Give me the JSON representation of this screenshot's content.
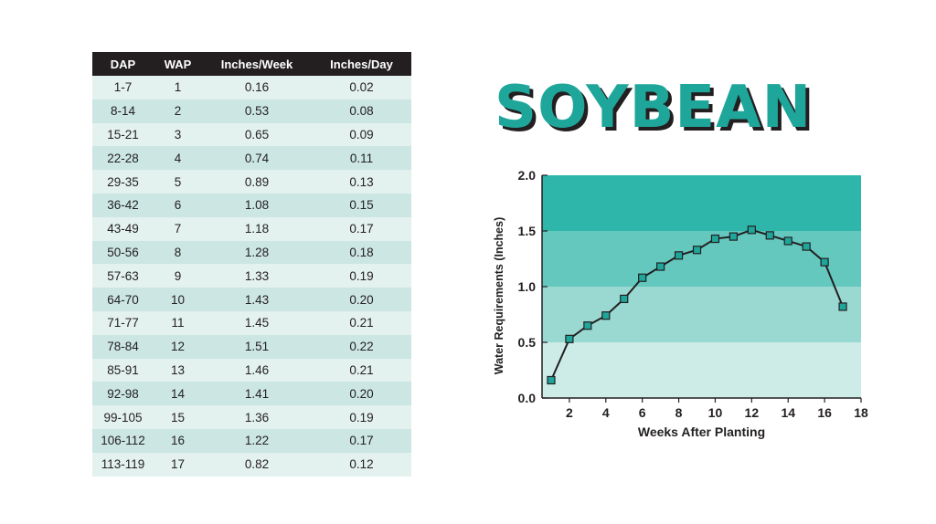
{
  "table": {
    "headers": [
      "DAP",
      "WAP",
      "Inches/Week",
      "Inches/Day"
    ],
    "rows": [
      [
        "1-7",
        "1",
        "0.16",
        "0.02"
      ],
      [
        "8-14",
        "2",
        "0.53",
        "0.08"
      ],
      [
        "15-21",
        "3",
        "0.65",
        "0.09"
      ],
      [
        "22-28",
        "4",
        "0.74",
        "0.11"
      ],
      [
        "29-35",
        "5",
        "0.89",
        "0.13"
      ],
      [
        "36-42",
        "6",
        "1.08",
        "0.15"
      ],
      [
        "43-49",
        "7",
        "1.18",
        "0.17"
      ],
      [
        "50-56",
        "8",
        "1.28",
        "0.18"
      ],
      [
        "57-63",
        "9",
        "1.33",
        "0.19"
      ],
      [
        "64-70",
        "10",
        "1.43",
        "0.20"
      ],
      [
        "71-77",
        "11",
        "1.45",
        "0.21"
      ],
      [
        "78-84",
        "12",
        "1.51",
        "0.22"
      ],
      [
        "85-91",
        "13",
        "1.46",
        "0.21"
      ],
      [
        "92-98",
        "14",
        "1.41",
        "0.20"
      ],
      [
        "99-105",
        "15",
        "1.36",
        "0.19"
      ],
      [
        "106-112",
        "16",
        "1.22",
        "0.17"
      ],
      [
        "113-119",
        "17",
        "0.82",
        "0.12"
      ]
    ]
  },
  "title": "SOYBEAN",
  "colors": {
    "accent": "#1fa69b",
    "header_bg": "#231f20",
    "row_light": "#e3f1ef",
    "row_dark": "#cbe6e3",
    "band_1": "#cdebe7",
    "band_2": "#9ad9d2",
    "band_3": "#64c8bf",
    "band_4": "#2fb6ab",
    "marker_fill": "#1fa69b",
    "line": "#231f20"
  },
  "chart_data": {
    "type": "line",
    "title": "",
    "xlabel": "Weeks After Planting",
    "ylabel": "Water Requirements (Inches)",
    "xlim": [
      0.5,
      18
    ],
    "ylim": [
      0,
      2.0
    ],
    "xticks": [
      "2",
      "4",
      "6",
      "8",
      "10",
      "12",
      "14",
      "16",
      "18"
    ],
    "xtick_values": [
      2,
      4,
      6,
      8,
      10,
      12,
      14,
      16,
      18
    ],
    "yticks": [
      "0.0",
      "0.5",
      "1.0",
      "1.5",
      "2.0"
    ],
    "ytick_values": [
      0,
      0.5,
      1.0,
      1.5,
      2.0
    ],
    "grid": false,
    "series": [
      {
        "x": [
          1,
          2,
          3,
          4,
          5,
          6,
          7,
          8,
          9,
          10,
          11,
          12,
          13,
          14,
          15,
          16,
          17
        ],
        "values": [
          0.16,
          0.53,
          0.65,
          0.74,
          0.89,
          1.08,
          1.18,
          1.28,
          1.33,
          1.43,
          1.45,
          1.51,
          1.46,
          1.41,
          1.36,
          1.22,
          0.82
        ]
      }
    ]
  }
}
